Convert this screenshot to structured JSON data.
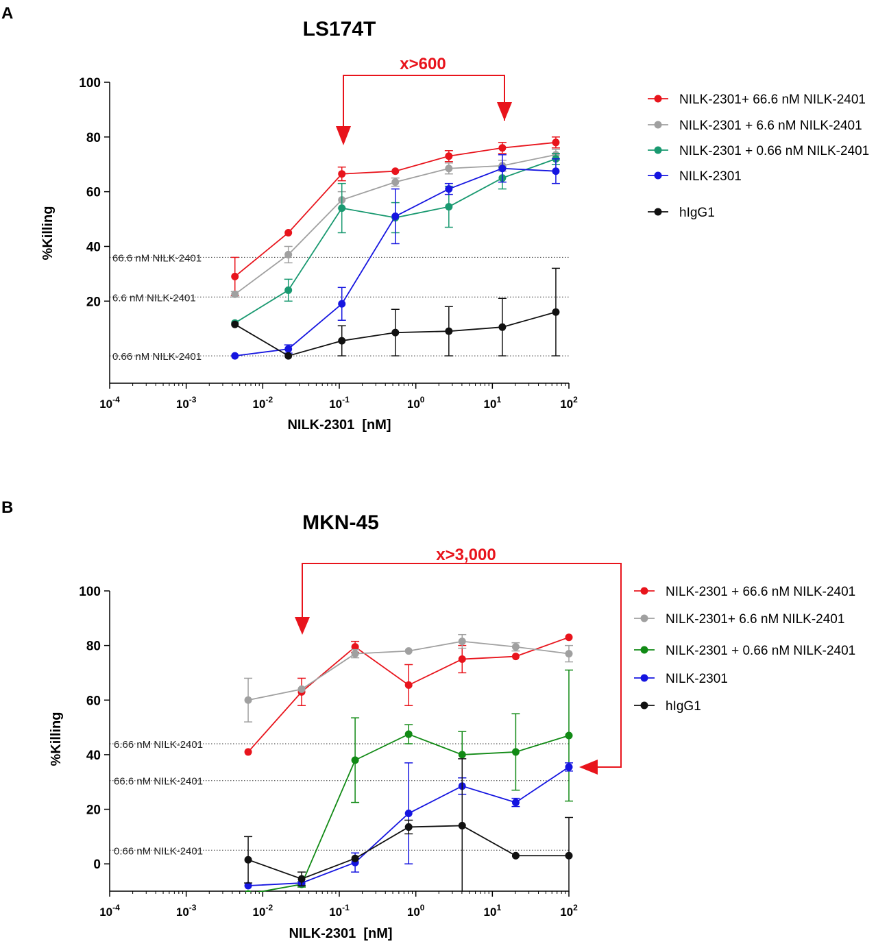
{
  "colors": {
    "red": "#e8141c",
    "gray": "#a0a0a0",
    "teal": "#199970",
    "green": "#118a15",
    "blue": "#1515e0",
    "black": "#111111"
  },
  "chart_data": [
    {
      "panel_label": "A",
      "type": "line",
      "title": "LS174T",
      "xlabel": "NILK-2301  [nM]",
      "ylabel": "%Killing",
      "xscale": "log",
      "xlim_exp": [
        -4,
        2
      ],
      "ylim": [
        -10,
        100
      ],
      "x_ticks": [
        {
          "base": "10",
          "exp": "-4"
        },
        {
          "base": "10",
          "exp": "-3"
        },
        {
          "base": "10",
          "exp": "-2"
        },
        {
          "base": "10",
          "exp": "-1"
        },
        {
          "base": "10",
          "exp": "0"
        },
        {
          "base": "10",
          "exp": "1"
        },
        {
          "base": "10",
          "exp": "2"
        }
      ],
      "y_ticks": [
        20,
        40,
        60,
        80,
        100
      ],
      "reference_lines": [
        {
          "label": "66.6 nM NILK-2401",
          "y": 36
        },
        {
          "label": "6.6 nM NILK-2401",
          "y": 21.5
        },
        {
          "label": "0.66 nM NILK-2401",
          "y": 0
        }
      ],
      "annotation": {
        "text": "x>600",
        "from_x": 0.107,
        "to_x": 13.5
      },
      "x": [
        0.00433,
        0.0216,
        0.108,
        0.54,
        2.7,
        13.5,
        67.5
      ],
      "legend_position": "right",
      "series": [
        {
          "name": "NILK-2301+ 66.6 nM NILK-2401",
          "color_key": "red",
          "values": [
            29,
            45,
            66.5,
            67.5,
            73,
            76,
            78
          ],
          "errors": [
            7,
            0,
            2.5,
            0,
            2,
            2,
            2
          ]
        },
        {
          "name": "NILK-2301 + 6.6 nM NILK-2401",
          "color_key": "gray",
          "values": [
            22.5,
            37,
            57,
            63.5,
            68.5,
            69.5,
            73.5
          ],
          "errors": [
            1,
            3,
            3,
            1.5,
            2,
            2,
            2
          ]
        },
        {
          "name": "NILK-2301 + 0.66 nM NILK-2401",
          "color_key": "teal",
          "values": [
            12,
            24,
            54,
            50.5,
            54.5,
            65,
            72
          ],
          "errors": [
            0,
            4,
            9,
            5.5,
            7.5,
            4,
            2
          ]
        },
        {
          "name": "NILK-2301",
          "color_key": "blue",
          "values": [
            0,
            2.5,
            19,
            51,
            61,
            68.5,
            67.5
          ],
          "errors": [
            0,
            1.5,
            6,
            10,
            2,
            5,
            4.5
          ]
        },
        {
          "name": "hIgG1",
          "color_key": "black",
          "values": [
            11.5,
            0,
            5.5,
            8.5,
            9,
            10.5,
            16
          ],
          "errors": [
            0,
            0,
            5.5,
            8.5,
            9,
            10.5,
            16
          ]
        }
      ]
    },
    {
      "panel_label": "B",
      "type": "line",
      "title": "MKN-45",
      "xlabel": "NILK-2301  [nM]",
      "ylabel": "%Killing",
      "xscale": "log",
      "xlim_exp": [
        -4,
        2
      ],
      "ylim": [
        -10,
        100
      ],
      "x_ticks": [
        {
          "base": "10",
          "exp": "-4"
        },
        {
          "base": "10",
          "exp": "-3"
        },
        {
          "base": "10",
          "exp": "-2"
        },
        {
          "base": "10",
          "exp": "-1"
        },
        {
          "base": "10",
          "exp": "0"
        },
        {
          "base": "10",
          "exp": "1"
        },
        {
          "base": "10",
          "exp": "2"
        }
      ],
      "y_ticks": [
        0,
        20,
        40,
        60,
        80,
        100
      ],
      "reference_lines": [
        {
          "label": "6.66 nM NILK-2401",
          "y": 44
        },
        {
          "label": "66.6 nM NILK-2401",
          "y": 30.5
        },
        {
          "label": "0.66 nM NILK-2401",
          "y": 5
        }
      ],
      "annotation": {
        "text": "x>3,000",
        "from_x": 0.0322,
        "to_x": 100
      },
      "x": [
        0.00645,
        0.0322,
        0.161,
        0.806,
        4.03,
        20.2,
        100
      ],
      "legend_position": "right",
      "series": [
        {
          "name": "NILK-2301 + 66.6 nM NILK-2401",
          "color_key": "red",
          "values": [
            41,
            63,
            79.5,
            65.5,
            75,
            76,
            83
          ],
          "errors": [
            0,
            5,
            2,
            7.5,
            5,
            0,
            0
          ]
        },
        {
          "name": "NILK-2301+ 6.6 nM NILK-2401",
          "color_key": "gray",
          "values": [
            60,
            64,
            77,
            78,
            81.5,
            79.5,
            77
          ],
          "errors": [
            8,
            0,
            1.5,
            0,
            2.5,
            1.5,
            3
          ]
        },
        {
          "name": "NILK-2301 + 0.66 nM NILK-2401",
          "color_key": "green",
          "values": [
            -11,
            -7.5,
            38,
            47.5,
            40,
            41,
            47
          ],
          "errors": [
            0,
            1,
            15.5,
            3.5,
            8.5,
            14,
            24
          ]
        },
        {
          "name": "NILK-2301",
          "color_key": "blue",
          "values": [
            -8,
            -7,
            0.5,
            18.5,
            28.5,
            22.5,
            35.5
          ],
          "errors": [
            0,
            0,
            3.5,
            18.5,
            3,
            1.5,
            1.5
          ]
        },
        {
          "name": "hIgG1",
          "color_key": "black",
          "values": [
            1.5,
            -5.5,
            2,
            13.5,
            14,
            3,
            3
          ],
          "errors": [
            8.5,
            2.5,
            0,
            2.5,
            24.5,
            0,
            14
          ]
        }
      ]
    }
  ]
}
